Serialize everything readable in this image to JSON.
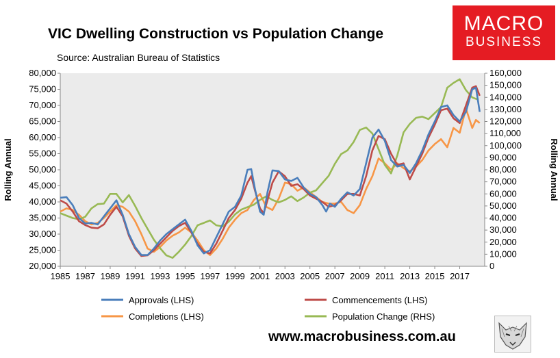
{
  "header": {
    "title": "VIC Dwelling Construction vs Population Change",
    "source": "Source: Australian Bureau of Statistics"
  },
  "logo": {
    "line1": "MACRO",
    "line2": "BUSINESS"
  },
  "footer": {
    "website": "www.macrobusiness.com.au"
  },
  "colors": {
    "approvals": "#4a7ebb",
    "commencements": "#be4b48",
    "completions": "#f79646",
    "population": "#98b954",
    "plot_background": "#ebebeb",
    "logo_red": "#e51c23"
  },
  "chart_data": {
    "type": "line",
    "title": "VIC Dwelling Construction vs Population Change",
    "ylabel_left": "Rolling Annual",
    "ylabel_right": "Rolling Annual",
    "ylim_left": [
      20000,
      80000
    ],
    "ylim_right": [
      0,
      160000
    ],
    "xlim": [
      1985,
      2019
    ],
    "x_ticks": [
      "1985",
      "1987",
      "1989",
      "1991",
      "1993",
      "1995",
      "1997",
      "1999",
      "2001",
      "2003",
      "2005",
      "2007",
      "2009",
      "2011",
      "2013",
      "2015",
      "2017"
    ],
    "y_left_ticks": [
      "20,000",
      "25,000",
      "30,000",
      "35,000",
      "40,000",
      "45,000",
      "50,000",
      "55,000",
      "60,000",
      "65,000",
      "70,000",
      "75,000",
      "80,000"
    ],
    "y_right_ticks": [
      "0",
      "10,000",
      "20,000",
      "30,000",
      "40,000",
      "50,000",
      "60,000",
      "70,000",
      "80,000",
      "90,000",
      "100,000",
      "110,000",
      "120,000",
      "130,000",
      "140,000",
      "150,000",
      "160,000"
    ],
    "grid": false,
    "legend_position": "bottom",
    "series": [
      {
        "name": "Approvals (LHS)",
        "axis": "left",
        "points": [
          [
            1985,
            41300
          ],
          [
            1985.5,
            41500
          ],
          [
            1986,
            39000
          ],
          [
            1986.5,
            35000
          ],
          [
            1987,
            33300
          ],
          [
            1987.5,
            33500
          ],
          [
            1988,
            33000
          ],
          [
            1988.5,
            35500
          ],
          [
            1989,
            38000
          ],
          [
            1989.5,
            40500
          ],
          [
            1990,
            36000
          ],
          [
            1990.5,
            30000
          ],
          [
            1991,
            26000
          ],
          [
            1991.5,
            23500
          ],
          [
            1992,
            23500
          ],
          [
            1992.5,
            25500
          ],
          [
            1993,
            28000
          ],
          [
            1993.5,
            30000
          ],
          [
            1994,
            31500
          ],
          [
            1994.5,
            33000
          ],
          [
            1995,
            34500
          ],
          [
            1995.5,
            31000
          ],
          [
            1996,
            26500
          ],
          [
            1996.5,
            24000
          ],
          [
            1997,
            25000
          ],
          [
            1997.5,
            29000
          ],
          [
            1998,
            33000
          ],
          [
            1998.5,
            37000
          ],
          [
            1999,
            38500
          ],
          [
            1999.5,
            42000
          ],
          [
            2000,
            50000
          ],
          [
            2000.3,
            50200
          ],
          [
            2000.6,
            44000
          ],
          [
            2001,
            37000
          ],
          [
            2001.3,
            36000
          ],
          [
            2001.6,
            43000
          ],
          [
            2002,
            49800
          ],
          [
            2002.5,
            49600
          ],
          [
            2003,
            47000
          ],
          [
            2003.5,
            46500
          ],
          [
            2004,
            47500
          ],
          [
            2004.5,
            44500
          ],
          [
            2005,
            42500
          ],
          [
            2005.5,
            41500
          ],
          [
            2006,
            39000
          ],
          [
            2006.3,
            37000
          ],
          [
            2006.6,
            39500
          ],
          [
            2007,
            38500
          ],
          [
            2007.5,
            41000
          ],
          [
            2008,
            43000
          ],
          [
            2008.5,
            42000
          ],
          [
            2009,
            44000
          ],
          [
            2009.5,
            52000
          ],
          [
            2010,
            60000
          ],
          [
            2010.5,
            62500
          ],
          [
            2011,
            59000
          ],
          [
            2011.5,
            53000
          ],
          [
            2012,
            51000
          ],
          [
            2012.5,
            51500
          ],
          [
            2013,
            49000
          ],
          [
            2013.5,
            52000
          ],
          [
            2014,
            56000
          ],
          [
            2014.5,
            61000
          ],
          [
            2015,
            65000
          ],
          [
            2015.5,
            69500
          ],
          [
            2016,
            70000
          ],
          [
            2016.5,
            67000
          ],
          [
            2017,
            65000
          ],
          [
            2017.5,
            68000
          ],
          [
            2018,
            75000
          ],
          [
            2018.3,
            75500
          ],
          [
            2018.6,
            68000
          ]
        ]
      },
      {
        "name": "Commencements (LHS)",
        "axis": "left",
        "points": [
          [
            1985,
            40500
          ],
          [
            1985.5,
            39500
          ],
          [
            1986,
            37000
          ],
          [
            1986.5,
            34000
          ],
          [
            1987,
            32800
          ],
          [
            1987.5,
            32000
          ],
          [
            1988,
            31800
          ],
          [
            1988.5,
            33000
          ],
          [
            1989,
            36000
          ],
          [
            1989.5,
            38500
          ],
          [
            1990,
            35500
          ],
          [
            1990.5,
            29500
          ],
          [
            1991,
            25500
          ],
          [
            1991.5,
            23200
          ],
          [
            1992,
            23400
          ],
          [
            1992.5,
            25000
          ],
          [
            1993,
            27000
          ],
          [
            1993.5,
            29000
          ],
          [
            1994,
            31000
          ],
          [
            1994.5,
            32500
          ],
          [
            1995,
            33500
          ],
          [
            1995.5,
            30500
          ],
          [
            1996,
            27000
          ],
          [
            1996.5,
            24500
          ],
          [
            1997,
            24000
          ],
          [
            1997.5,
            27000
          ],
          [
            1998,
            31000
          ],
          [
            1998.5,
            35000
          ],
          [
            1999,
            37500
          ],
          [
            1999.5,
            41000
          ],
          [
            2000,
            46000
          ],
          [
            2000.3,
            48000
          ],
          [
            2000.6,
            43500
          ],
          [
            2001,
            38000
          ],
          [
            2001.3,
            36500
          ],
          [
            2001.6,
            40500
          ],
          [
            2002,
            46000
          ],
          [
            2002.5,
            49500
          ],
          [
            2003,
            48000
          ],
          [
            2003.5,
            45000
          ],
          [
            2004,
            45500
          ],
          [
            2004.5,
            44000
          ],
          [
            2005,
            42000
          ],
          [
            2005.5,
            41000
          ],
          [
            2006,
            40000
          ],
          [
            2006.5,
            38500
          ],
          [
            2007,
            39000
          ],
          [
            2007.5,
            40500
          ],
          [
            2008,
            42500
          ],
          [
            2008.5,
            42500
          ],
          [
            2009,
            42000
          ],
          [
            2009.5,
            48000
          ],
          [
            2010,
            56000
          ],
          [
            2010.5,
            60500
          ],
          [
            2011,
            59500
          ],
          [
            2011.5,
            55000
          ],
          [
            2012,
            51500
          ],
          [
            2012.5,
            52000
          ],
          [
            2013,
            47000
          ],
          [
            2013.5,
            51000
          ],
          [
            2014,
            55000
          ],
          [
            2014.5,
            60000
          ],
          [
            2015,
            64000
          ],
          [
            2015.5,
            68500
          ],
          [
            2016,
            69000
          ],
          [
            2016.5,
            66000
          ],
          [
            2017,
            64500
          ],
          [
            2017.5,
            70000
          ],
          [
            2018,
            75500
          ],
          [
            2018.3,
            76000
          ],
          [
            2018.6,
            73000
          ]
        ]
      },
      {
        "name": "Completions (LHS)",
        "axis": "left",
        "points": [
          [
            1985,
            37000
          ],
          [
            1985.5,
            38000
          ],
          [
            1986,
            37500
          ],
          [
            1986.5,
            36000
          ],
          [
            1987,
            34000
          ],
          [
            1987.5,
            33000
          ],
          [
            1988,
            33500
          ],
          [
            1988.5,
            35000
          ],
          [
            1989,
            37000
          ],
          [
            1989.5,
            39000
          ],
          [
            1990,
            38500
          ],
          [
            1990.5,
            37000
          ],
          [
            1991,
            34000
          ],
          [
            1991.5,
            30000
          ],
          [
            1992,
            25500
          ],
          [
            1992.5,
            24500
          ],
          [
            1993,
            26000
          ],
          [
            1993.5,
            28000
          ],
          [
            1994,
            29500
          ],
          [
            1994.5,
            30500
          ],
          [
            1995,
            32000
          ],
          [
            1995.5,
            30500
          ],
          [
            1996,
            28000
          ],
          [
            1996.5,
            25000
          ],
          [
            1997,
            23500
          ],
          [
            1997.5,
            25500
          ],
          [
            1998,
            28500
          ],
          [
            1998.5,
            32000
          ],
          [
            1999,
            34500
          ],
          [
            1999.5,
            36500
          ],
          [
            2000,
            37500
          ],
          [
            2000.5,
            40500
          ],
          [
            2001,
            42500
          ],
          [
            2001.5,
            38500
          ],
          [
            2002,
            37500
          ],
          [
            2002.5,
            41000
          ],
          [
            2003,
            46000
          ],
          [
            2003.5,
            45500
          ],
          [
            2004,
            43500
          ],
          [
            2004.5,
            44500
          ],
          [
            2005,
            43000
          ],
          [
            2005.5,
            41500
          ],
          [
            2006,
            40000
          ],
          [
            2006.5,
            39500
          ],
          [
            2007,
            39500
          ],
          [
            2007.5,
            40000
          ],
          [
            2008,
            37500
          ],
          [
            2008.5,
            36500
          ],
          [
            2009,
            39000
          ],
          [
            2009.5,
            44000
          ],
          [
            2010,
            48000
          ],
          [
            2010.5,
            53500
          ],
          [
            2011,
            52000
          ],
          [
            2011.5,
            50000
          ],
          [
            2012,
            52000
          ],
          [
            2012.5,
            50500
          ],
          [
            2013,
            49500
          ],
          [
            2013.5,
            51000
          ],
          [
            2014,
            53000
          ],
          [
            2014.5,
            56000
          ],
          [
            2015,
            58000
          ],
          [
            2015.5,
            59500
          ],
          [
            2016,
            57000
          ],
          [
            2016.5,
            63000
          ],
          [
            2017,
            61500
          ],
          [
            2017.5,
            69000
          ],
          [
            2018,
            63000
          ],
          [
            2018.3,
            65500
          ],
          [
            2018.6,
            64500
          ]
        ]
      },
      {
        "name": "Population Change (RHS)",
        "axis": "right",
        "points": [
          [
            1985,
            44000
          ],
          [
            1985.5,
            42000
          ],
          [
            1986,
            40000
          ],
          [
            1986.5,
            39000
          ],
          [
            1987,
            41000
          ],
          [
            1987.5,
            48000
          ],
          [
            1988,
            51500
          ],
          [
            1988.5,
            52000
          ],
          [
            1989,
            60000
          ],
          [
            1989.5,
            60000
          ],
          [
            1990,
            53000
          ],
          [
            1990.5,
            59000
          ],
          [
            1991,
            50000
          ],
          [
            1991.5,
            40000
          ],
          [
            1992,
            31000
          ],
          [
            1992.5,
            22000
          ],
          [
            1993,
            15000
          ],
          [
            1993.5,
            9000
          ],
          [
            1994,
            7000
          ],
          [
            1994.5,
            12000
          ],
          [
            1995,
            18000
          ],
          [
            1995.5,
            25000
          ],
          [
            1996,
            34000
          ],
          [
            1996.5,
            36000
          ],
          [
            1997,
            38000
          ],
          [
            1997.5,
            34000
          ],
          [
            1998,
            33000
          ],
          [
            1998.5,
            37000
          ],
          [
            1999,
            43000
          ],
          [
            1999.5,
            47000
          ],
          [
            2000,
            49000
          ],
          [
            2000.5,
            51000
          ],
          [
            2001,
            55000
          ],
          [
            2001.5,
            58000
          ],
          [
            2002,
            55000
          ],
          [
            2002.5,
            53000
          ],
          [
            2003,
            55000
          ],
          [
            2003.5,
            58000
          ],
          [
            2004,
            54000
          ],
          [
            2004.5,
            57000
          ],
          [
            2005,
            61000
          ],
          [
            2005.5,
            63000
          ],
          [
            2006,
            69000
          ],
          [
            2006.5,
            75000
          ],
          [
            2007,
            85000
          ],
          [
            2007.5,
            93000
          ],
          [
            2008,
            96000
          ],
          [
            2008.5,
            103000
          ],
          [
            2009,
            113000
          ],
          [
            2009.5,
            115000
          ],
          [
            2010,
            110000
          ],
          [
            2010.5,
            97000
          ],
          [
            2011,
            84000
          ],
          [
            2011.5,
            77000
          ],
          [
            2012,
            92000
          ],
          [
            2012.5,
            111000
          ],
          [
            2013,
            118000
          ],
          [
            2013.5,
            123000
          ],
          [
            2014,
            124000
          ],
          [
            2014.5,
            122000
          ],
          [
            2015,
            127000
          ],
          [
            2015.5,
            132000
          ],
          [
            2016,
            148000
          ],
          [
            2016.5,
            152000
          ],
          [
            2017,
            155000
          ],
          [
            2017.5,
            146000
          ],
          [
            2018,
            140000
          ],
          [
            2018.5,
            138000
          ]
        ]
      }
    ]
  }
}
